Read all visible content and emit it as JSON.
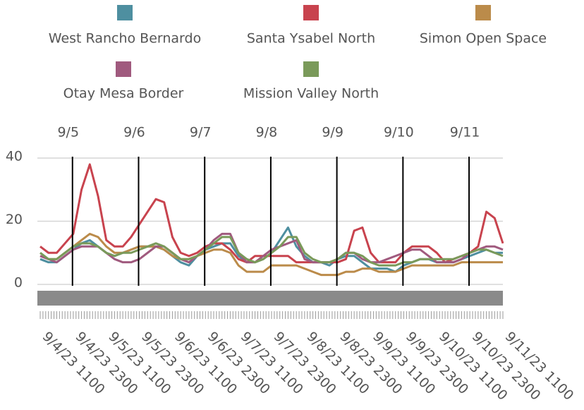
{
  "chart_data": {
    "type": "line",
    "categories": [
      "9/4/23 1100",
      null,
      null,
      null,
      "9/4/23 2300",
      null,
      null,
      null,
      "9/5/23 1100",
      null,
      null,
      null,
      "9/5/23 2300",
      null,
      null,
      null,
      "9/6/23 1100",
      null,
      null,
      null,
      "9/6/23 2300",
      null,
      null,
      null,
      "9/7/23 1100",
      null,
      null,
      null,
      "9/7/23 2300",
      null,
      null,
      null,
      "9/8/23 1100",
      null,
      null,
      null,
      "9/8/23 2300",
      null,
      null,
      null,
      "9/9/23 1100",
      null,
      null,
      null,
      "9/9/23 2300",
      null,
      null,
      null,
      "9/10/23 1100",
      null,
      null,
      null,
      "9/10/23 2300",
      null,
      null,
      null,
      "9/11/23 1100"
    ],
    "day_labels": [
      "9/5",
      "9/6",
      "9/7",
      "9/8",
      "9/9",
      "9/10",
      "9/11"
    ],
    "ylim": [
      0,
      40
    ],
    "yticks": [
      0,
      20,
      40
    ],
    "grid": true,
    "series": [
      {
        "name": "West Rancho Bernardo",
        "color": "#4e8fa0",
        "values": [
          8,
          7,
          7,
          9,
          11,
          13,
          14,
          12,
          10,
          9,
          10,
          11,
          12,
          12,
          12,
          11,
          9,
          7,
          6,
          9,
          11,
          12,
          13,
          13,
          9,
          7,
          7,
          8,
          10,
          14,
          18,
          12,
          9,
          7,
          7,
          6,
          8,
          9,
          9,
          7,
          5,
          5,
          5,
          4,
          6,
          7,
          8,
          8,
          7,
          7,
          7,
          8,
          9,
          10,
          11,
          10,
          10
        ]
      },
      {
        "name": "Santa Ysabel North",
        "color": "#c8434e",
        "values": [
          12,
          10,
          10,
          13,
          16,
          30,
          38,
          28,
          14,
          12,
          12,
          15,
          19,
          23,
          27,
          26,
          15,
          10,
          9,
          10,
          12,
          13,
          13,
          11,
          8,
          7,
          9,
          9,
          9,
          9,
          9,
          7,
          7,
          7,
          7,
          7,
          7,
          8,
          17,
          18,
          10,
          7,
          7,
          7,
          10,
          12,
          12,
          12,
          10,
          7,
          8,
          9,
          10,
          12,
          23,
          21,
          13
        ]
      },
      {
        "name": "Simon Open Space",
        "color": "#bb8b4a",
        "values": [
          9,
          8,
          8,
          10,
          12,
          14,
          16,
          15,
          12,
          10,
          10,
          11,
          12,
          12,
          12,
          11,
          9,
          8,
          8,
          9,
          10,
          11,
          11,
          10,
          6,
          4,
          4,
          4,
          6,
          6,
          6,
          6,
          5,
          4,
          3,
          3,
          3,
          4,
          4,
          5,
          5,
          4,
          4,
          4,
          5,
          6,
          6,
          6,
          6,
          6,
          6,
          7,
          7,
          7,
          7,
          7,
          7
        ]
      },
      {
        "name": "Otay Mesa Border",
        "color": "#a05a7e",
        "values": [
          9,
          8,
          7,
          9,
          11,
          12,
          12,
          12,
          10,
          8,
          7,
          7,
          8,
          10,
          12,
          12,
          10,
          8,
          7,
          9,
          11,
          14,
          16,
          16,
          10,
          7,
          7,
          9,
          11,
          12,
          13,
          14,
          8,
          7,
          7,
          7,
          8,
          10,
          10,
          8,
          7,
          7,
          8,
          9,
          10,
          11,
          11,
          9,
          7,
          7,
          7,
          8,
          10,
          11,
          12,
          12,
          11
        ]
      },
      {
        "name": "Mission Valley North",
        "color": "#7a9a5a",
        "values": [
          10,
          8,
          8,
          10,
          12,
          13,
          13,
          12,
          10,
          9,
          10,
          10,
          11,
          12,
          13,
          12,
          10,
          8,
          8,
          9,
          11,
          13,
          15,
          15,
          10,
          8,
          7,
          8,
          10,
          12,
          15,
          15,
          10,
          8,
          7,
          7,
          8,
          10,
          10,
          9,
          7,
          6,
          6,
          6,
          7,
          7,
          8,
          8,
          8,
          8,
          8,
          9,
          10,
          11,
          11,
          10,
          9
        ]
      }
    ]
  }
}
